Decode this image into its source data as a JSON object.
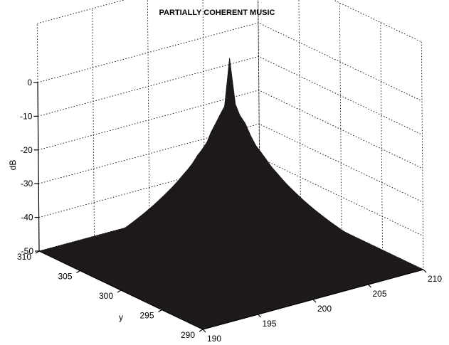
{
  "chart_data": {
    "type": "surface3d",
    "title": "PARTIALLY COHERENT MUSIC",
    "xlabel": "",
    "ylabel": "y",
    "zlabel": "dB",
    "x_ticks": [
      "190",
      "195",
      "200",
      "205",
      "210"
    ],
    "y_ticks": [
      "290",
      "295",
      "300",
      "305",
      "310"
    ],
    "z_ticks": [
      "0",
      "-10",
      "-20",
      "-30",
      "-40",
      "-50"
    ],
    "xlim": [
      190,
      210
    ],
    "ylim": [
      290,
      310
    ],
    "zlim": [
      -50,
      0
    ],
    "grid": true,
    "surface_color": "#1e1a1a",
    "peak": {
      "x": 200,
      "y": 300,
      "z": 10
    }
  }
}
